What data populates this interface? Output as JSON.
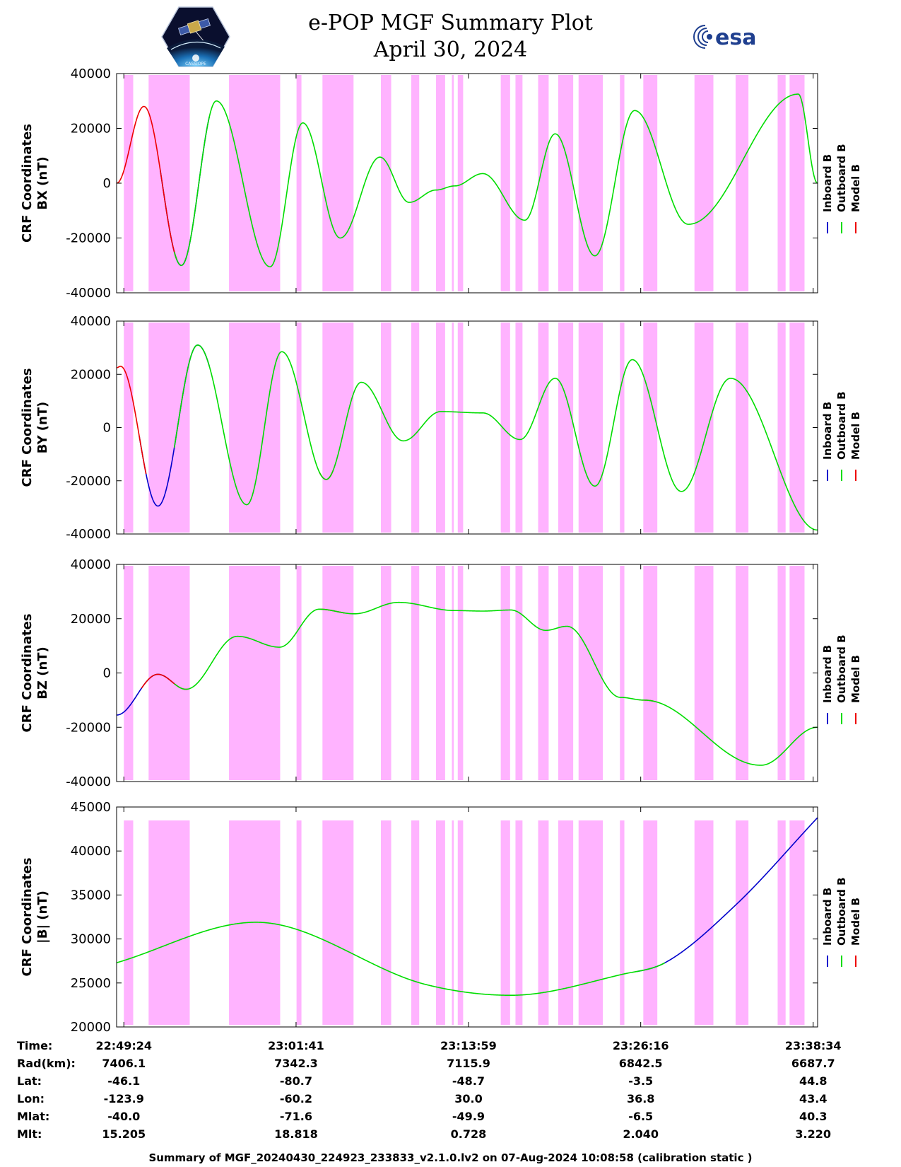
{
  "header": {
    "title_line1": "e-POP MGF Summary Plot",
    "title_line2": "April 30, 2024",
    "mission_logo_icon": "epop-cassiope-satellite-logo",
    "agency_logo_icon": "esa-logo",
    "agency_logo_text": "esa"
  },
  "colors": {
    "inboard": "#0000cc",
    "outboard": "#00dd00",
    "model": "#ee0000",
    "band": "#ffb3ff"
  },
  "chart_data": [
    {
      "type": "line",
      "ylabel_line1": "CRF Coordinates",
      "ylabel_line2": "BX (nT)",
      "ylim": [
        -40000,
        40000
      ],
      "yticks": [
        -40000,
        -20000,
        0,
        20000,
        40000
      ],
      "x_range": [
        "22:48:53",
        "23:38:53"
      ],
      "xticks": [
        "22:49:24",
        "23:01:41",
        "23:13:59",
        "23:26:16",
        "23:38:34"
      ],
      "legend": [
        "Inboard B",
        "Outboard B",
        "Model B"
      ],
      "legend_placement": "right",
      "grid": false,
      "extrema": [
        [
          "22:48:53",
          0
        ],
        [
          "22:50:50",
          28000
        ],
        [
          "22:53:30",
          -30000
        ],
        [
          "22:56:00",
          30000
        ],
        [
          "22:59:50",
          -30500
        ],
        [
          "23:02:10",
          22000
        ],
        [
          "23:04:50",
          -20000
        ],
        [
          "23:07:40",
          9500
        ],
        [
          "23:09:45",
          -7000
        ],
        [
          "23:11:40",
          -2500
        ],
        [
          "23:13:00",
          -1000
        ],
        [
          "23:15:00",
          3500
        ],
        [
          "23:18:00",
          -13500
        ],
        [
          "23:20:10",
          18000
        ],
        [
          "23:23:00",
          -26500
        ],
        [
          "23:25:50",
          26500
        ],
        [
          "23:29:40",
          -15000
        ],
        [
          "23:37:30",
          32500
        ],
        [
          "23:38:53",
          0
        ]
      ],
      "series": [
        {
          "name": "Inboard B",
          "segments": [
            [
              "22:52:00",
              "22:55:30"
            ]
          ]
        },
        {
          "name": "Outboard B",
          "segments": [
            [
              "22:53:00",
              "23:38:53"
            ]
          ]
        },
        {
          "name": "Model B",
          "segments": [
            [
              "22:48:53",
              "22:53:10"
            ]
          ]
        }
      ]
    },
    {
      "type": "line",
      "ylabel_line1": "CRF Coordinates",
      "ylabel_line2": "BY (nT)",
      "ylim": [
        -40000,
        40000
      ],
      "yticks": [
        -40000,
        -20000,
        0,
        20000,
        40000
      ],
      "x_range": [
        "22:48:53",
        "23:38:53"
      ],
      "xticks": [
        "22:49:24",
        "23:01:41",
        "23:13:59",
        "23:26:16",
        "23:38:34"
      ],
      "legend": [
        "Inboard B",
        "Outboard B",
        "Model B"
      ],
      "legend_placement": "right",
      "grid": false,
      "extrema": [
        [
          "22:48:53",
          22500
        ],
        [
          "22:49:10",
          23000
        ],
        [
          "22:51:50",
          -29500
        ],
        [
          "22:54:40",
          31000
        ],
        [
          "22:58:10",
          -29000
        ],
        [
          "23:00:40",
          28500
        ],
        [
          "23:03:50",
          -19500
        ],
        [
          "23:06:20",
          17000
        ],
        [
          "23:09:20",
          -5000
        ],
        [
          "23:12:00",
          6000
        ],
        [
          "23:15:00",
          5500
        ],
        [
          "23:17:40",
          -4500
        ],
        [
          "23:20:10",
          18500
        ],
        [
          "23:23:00",
          -22000
        ],
        [
          "23:25:40",
          25500
        ],
        [
          "23:29:10",
          -24000
        ],
        [
          "23:32:40",
          18500
        ],
        [
          "23:38:53",
          -38500
        ]
      ],
      "series": [
        {
          "name": "Inboard B",
          "segments": [
            [
              "22:50:30",
              "22:55:30"
            ]
          ]
        },
        {
          "name": "Outboard B",
          "segments": [
            [
              "22:53:00",
              "23:38:53"
            ]
          ]
        },
        {
          "name": "Model B",
          "segments": [
            [
              "22:48:53",
              "22:51:00"
            ],
            [
              "23:03:20",
              "23:04:20"
            ]
          ]
        }
      ]
    },
    {
      "type": "line",
      "ylabel_line1": "CRF Coordinates",
      "ylabel_line2": "BZ (nT)",
      "ylim": [
        -40000,
        40000
      ],
      "yticks": [
        -40000,
        -20000,
        0,
        20000,
        40000
      ],
      "x_range": [
        "22:48:53",
        "23:38:53"
      ],
      "xticks": [
        "22:49:24",
        "23:01:41",
        "23:13:59",
        "23:26:16",
        "23:38:34"
      ],
      "legend": [
        "Inboard B",
        "Outboard B",
        "Model B"
      ],
      "legend_placement": "right",
      "grid": false,
      "extrema": [
        [
          "22:48:53",
          -15500
        ],
        [
          "22:51:50",
          -500
        ],
        [
          "22:53:50",
          -6000
        ],
        [
          "22:57:30",
          13500
        ],
        [
          "23:00:30",
          9500
        ],
        [
          "23:03:20",
          23500
        ],
        [
          "23:05:50",
          21800
        ],
        [
          "23:09:00",
          26000
        ],
        [
          "23:13:00",
          23000
        ],
        [
          "23:15:00",
          22800
        ],
        [
          "23:17:00",
          23200
        ],
        [
          "23:19:30",
          15700
        ],
        [
          "23:21:00",
          17200
        ],
        [
          "23:24:50",
          -9000
        ],
        [
          "23:26:30",
          -10000
        ],
        [
          "23:34:50",
          -34000
        ],
        [
          "23:38:53",
          -20000
        ]
      ],
      "series": [
        {
          "name": "Inboard B",
          "segments": [
            [
              "22:48:53",
              "22:53:00"
            ]
          ]
        },
        {
          "name": "Outboard B",
          "segments": [
            [
              "22:53:00",
              "23:38:53"
            ]
          ]
        },
        {
          "name": "Model B",
          "segments": [
            [
              "22:50:40",
              "22:54:00"
            ],
            [
              "23:03:20",
              "23:05:10"
            ],
            [
              "23:26:10",
              "23:27:10"
            ]
          ]
        }
      ]
    },
    {
      "type": "line",
      "ylabel_line1": "CRF Coordinates",
      "ylabel_line2": "|B| (nT)",
      "ylim": [
        20000,
        45000
      ],
      "yticks": [
        20000,
        25000,
        30000,
        35000,
        40000,
        45000
      ],
      "x_range": [
        "22:48:53",
        "23:38:53"
      ],
      "xticks": [
        "22:49:24",
        "23:01:41",
        "23:13:59",
        "23:26:16",
        "23:38:34"
      ],
      "legend": [
        "Inboard B",
        "Outboard B",
        "Model B"
      ],
      "legend_placement": "right",
      "grid": false,
      "extrema": [
        [
          "22:48:53",
          27300
        ],
        [
          "22:58:50",
          31900
        ],
        [
          "23:11:00",
          24800
        ],
        [
          "23:17:00",
          23600
        ],
        [
          "23:25:00",
          26000
        ],
        [
          "23:28:00",
          27300
        ],
        [
          "23:33:00",
          33800
        ],
        [
          "23:38:53",
          43800
        ]
      ],
      "series": [
        {
          "name": "Inboard B",
          "segments": [
            [
              "23:26:00",
              "23:38:53"
            ]
          ]
        },
        {
          "name": "Outboard B",
          "segments": [
            [
              "22:48:53",
              "23:28:00"
            ]
          ]
        },
        {
          "name": "Model B",
          "segments": []
        }
      ]
    }
  ],
  "bands": [
    [
      "22:49:24",
      "22:50:04"
    ],
    [
      "22:51:10",
      "22:54:06"
    ],
    [
      "22:56:54",
      "23:00:33"
    ],
    [
      "23:01:43",
      "23:02:04"
    ],
    [
      "23:03:34",
      "23:05:47"
    ],
    [
      "23:07:44",
      "23:08:28"
    ],
    [
      "23:09:54",
      "23:10:28"
    ],
    [
      "23:11:40",
      "23:12:19"
    ],
    [
      "23:12:48",
      "23:12:56"
    ],
    [
      "23:13:13",
      "23:13:36"
    ],
    [
      "23:16:17",
      "23:16:57"
    ],
    [
      "23:17:20",
      "23:17:50"
    ],
    [
      "23:18:57",
      "23:19:42"
    ],
    [
      "23:20:23",
      "23:21:27"
    ],
    [
      "23:21:50",
      "23:23:34"
    ],
    [
      "23:24:47",
      "23:25:06"
    ],
    [
      "23:26:27",
      "23:27:27"
    ],
    [
      "23:30:06",
      "23:31:27"
    ],
    [
      "23:33:02",
      "23:33:57"
    ],
    [
      "23:36:02",
      "23:36:36"
    ],
    [
      "23:36:53",
      "23:37:57"
    ]
  ],
  "ephemeris": {
    "rows": [
      {
        "label": "Time:",
        "values": [
          "22:49:24",
          "23:01:41",
          "23:13:59",
          "23:26:16",
          "23:38:34"
        ]
      },
      {
        "label": "Rad(km):",
        "values": [
          "7406.1",
          "7342.3",
          "7115.9",
          "6842.5",
          "6687.7"
        ]
      },
      {
        "label": "Lat:",
        "values": [
          "-46.1",
          "-80.7",
          "-48.7",
          "-3.5",
          "44.8"
        ]
      },
      {
        "label": "Lon:",
        "values": [
          "-123.9",
          "-60.2",
          "30.0",
          "36.8",
          "43.4"
        ]
      },
      {
        "label": "Mlat:",
        "values": [
          "-40.0",
          "-71.6",
          "-49.9",
          "-6.5",
          "40.3"
        ]
      },
      {
        "label": "Mlt:",
        "values": [
          "15.205",
          "18.818",
          "0.728",
          "2.040",
          "3.220"
        ]
      }
    ]
  },
  "footer": {
    "text": "Summary of MGF_20240430_224923_233833_v2.1.0.lv2 on 07-Aug-2024 10:08:58 (calibration static )"
  }
}
